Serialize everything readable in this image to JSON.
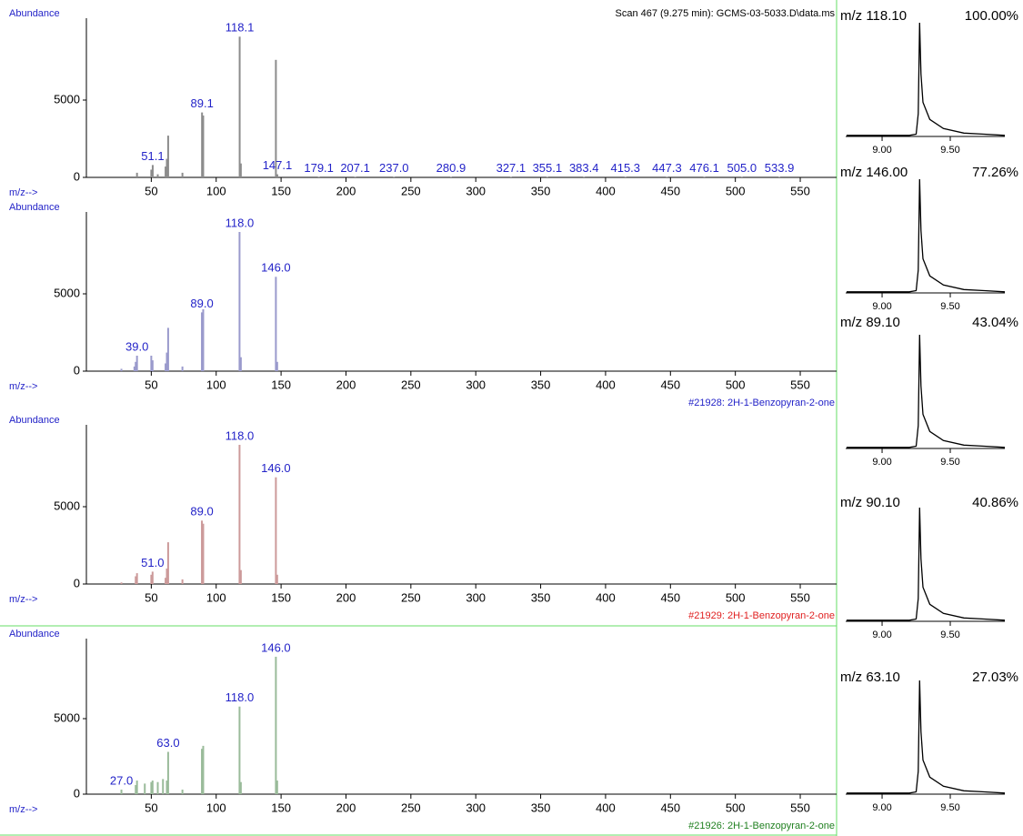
{
  "chart_data": [
    {
      "type": "spectrum",
      "title": "Scan 467 (9.275 min): GCMS-03-5033.D\\data.ms",
      "ylabel": "Abundance",
      "xlabel": "m/z-->",
      "x": [
        39,
        50,
        51.1,
        55,
        61,
        62,
        63,
        74,
        89.1,
        90,
        118.1,
        119,
        146,
        147.1,
        179.1,
        207.1,
        237.0,
        280.9,
        327.1,
        355.1,
        383.4,
        415.3,
        447.3,
        476.1,
        505.0,
        533.9
      ],
      "values": [
        300,
        500,
        800,
        200,
        700,
        1200,
        2700,
        300,
        4200,
        4000,
        9100,
        900,
        7600,
        200,
        40,
        40,
        40,
        40,
        40,
        40,
        40,
        40,
        40,
        40,
        40,
        40
      ],
      "x_labels": [
        null,
        null,
        "51.1",
        null,
        null,
        null,
        null,
        null,
        "89.1",
        null,
        "118.1",
        null,
        null,
        "147.1",
        "179.1",
        "207.1",
        "237.0",
        "280.9",
        "327.1",
        "355.1",
        "383.4",
        "415.3",
        "447.3",
        "476.1",
        "505.0",
        "533.9"
      ],
      "color": "#8c8c8c",
      "label_color": "#2323c8",
      "xlim": [
        0,
        578
      ],
      "xticks": [
        50,
        100,
        150,
        200,
        250,
        300,
        350,
        400,
        450,
        500,
        550
      ],
      "ylim": [
        0,
        10000
      ],
      "yticks": [
        0,
        5000
      ]
    },
    {
      "type": "spectrum",
      "ylabel": "Abundance",
      "xlabel": "m/z-->",
      "x": [
        27,
        37,
        38,
        39.0,
        50,
        51,
        61,
        62,
        63,
        74,
        89.0,
        90,
        118.0,
        119,
        146.0,
        147
      ],
      "values": [
        150,
        300,
        600,
        1000,
        1000,
        700,
        500,
        1200,
        2800,
        300,
        3800,
        4000,
        9000,
        900,
        6100,
        600
      ],
      "x_labels": [
        null,
        null,
        null,
        "39.0",
        null,
        null,
        null,
        null,
        null,
        null,
        "89.0",
        null,
        "118.0",
        null,
        "146.0",
        null
      ],
      "color": "#9a9acc",
      "label_color": "#2323c8",
      "caption": "#21928: 2H-1-Benzopyran-2-one",
      "caption_color": "#2323c8",
      "xlim": [
        0,
        578
      ],
      "xticks": [
        50,
        100,
        150,
        200,
        250,
        300,
        350,
        400,
        450,
        500,
        550
      ],
      "ylim": [
        0,
        10000
      ],
      "yticks": [
        0,
        5000
      ]
    },
    {
      "type": "spectrum",
      "ylabel": "Abundance",
      "xlabel": "m/z-->",
      "x": [
        27,
        38,
        39,
        50,
        51.0,
        61,
        62,
        63,
        74,
        89.0,
        90,
        118.0,
        119,
        146.0,
        147
      ],
      "values": [
        100,
        500,
        700,
        600,
        800,
        400,
        1000,
        2700,
        300,
        4100,
        3900,
        9000,
        900,
        6900,
        600
      ],
      "x_labels": [
        null,
        null,
        null,
        null,
        "51.0",
        null,
        null,
        null,
        null,
        "89.0",
        null,
        "118.0",
        null,
        "146.0",
        null
      ],
      "color": "#cc9a9a",
      "label_color": "#2323c8",
      "caption": "#21929: 2H-1-Benzopyran-2-one",
      "caption_color": "#e02020",
      "xlim": [
        0,
        578
      ],
      "xticks": [
        50,
        100,
        150,
        200,
        250,
        300,
        350,
        400,
        450,
        500,
        550
      ],
      "ylim": [
        0,
        10000
      ],
      "yticks": [
        0,
        5000
      ]
    },
    {
      "type": "spectrum",
      "ylabel": "Abundance",
      "xlabel": "m/z-->",
      "x": [
        27.0,
        38,
        39,
        45,
        50,
        51,
        55,
        59,
        62,
        63.0,
        74,
        89,
        90,
        118.0,
        119,
        146.0,
        147
      ],
      "values": [
        300,
        600,
        900,
        700,
        800,
        900,
        800,
        1000,
        900,
        2800,
        300,
        3000,
        3200,
        5800,
        800,
        9100,
        900
      ],
      "x_labels": [
        "27.0",
        null,
        null,
        null,
        null,
        null,
        null,
        null,
        null,
        "63.0",
        null,
        null,
        null,
        "118.0",
        null,
        "146.0",
        null
      ],
      "color": "#9abb9a",
      "label_color": "#2323c8",
      "caption": "#21926: 2H-1-Benzopyran-2-one",
      "caption_color": "#208020",
      "xlim": [
        0,
        578
      ],
      "xticks": [
        50,
        100,
        150,
        200,
        250,
        300,
        350,
        400,
        450,
        500,
        550
      ],
      "ylim": [
        0,
        10000
      ],
      "yticks": [
        0,
        5000
      ]
    },
    {
      "type": "line",
      "title": "m/z 118.10",
      "subtitle": "100.00%",
      "x": [
        8.74,
        9.2,
        9.25,
        9.265,
        9.275,
        9.285,
        9.3,
        9.35,
        9.45,
        9.6,
        9.75,
        9.9
      ],
      "values": [
        1,
        1,
        2,
        20,
        100,
        55,
        30,
        15,
        7,
        3,
        2,
        1
      ],
      "color": "#000000",
      "xlim": [
        8.733,
        9.9
      ],
      "xticks": [
        {
          "value": 9,
          "label": "9.00"
        },
        {
          "value": 9.5,
          "label": "9.50"
        }
      ],
      "ylim": [
        0,
        100
      ]
    },
    {
      "type": "line",
      "title": "m/z 146.00",
      "subtitle": "77.26%",
      "x": [
        8.74,
        9.2,
        9.25,
        9.265,
        9.275,
        9.285,
        9.3,
        9.35,
        9.45,
        9.6,
        9.75,
        9.9
      ],
      "values": [
        1,
        1,
        2,
        20,
        100,
        55,
        30,
        15,
        7,
        3,
        2,
        1
      ],
      "color": "#000000",
      "xlim": [
        8.733,
        9.9
      ],
      "xticks": [
        {
          "value": 9,
          "label": "9.00"
        },
        {
          "value": 9.5,
          "label": "9.50"
        }
      ],
      "ylim": [
        0,
        100
      ]
    },
    {
      "type": "line",
      "title": "m/z 89.10",
      "subtitle": "43.04%",
      "x": [
        8.74,
        9.2,
        9.25,
        9.265,
        9.275,
        9.285,
        9.3,
        9.35,
        9.45,
        9.6,
        9.75,
        9.9
      ],
      "values": [
        1,
        1,
        2,
        20,
        100,
        55,
        30,
        15,
        7,
        3,
        2,
        1
      ],
      "color": "#000000",
      "xlim": [
        8.733,
        9.9
      ],
      "xticks": [
        {
          "value": 9,
          "label": "9.00"
        },
        {
          "value": 9.5,
          "label": "9.50"
        }
      ],
      "ylim": [
        0,
        100
      ]
    },
    {
      "type": "line",
      "title": "m/z 90.10",
      "subtitle": "40.86%",
      "x": [
        8.74,
        9.2,
        9.25,
        9.265,
        9.275,
        9.285,
        9.3,
        9.35,
        9.45,
        9.6,
        9.75,
        9.9
      ],
      "values": [
        1,
        1,
        2,
        20,
        100,
        55,
        30,
        15,
        7,
        3,
        2,
        1
      ],
      "color": "#000000",
      "xlim": [
        8.733,
        9.9
      ],
      "xticks": [
        {
          "value": 9,
          "label": "9.00"
        },
        {
          "value": 9.5,
          "label": "9.50"
        }
      ],
      "ylim": [
        0,
        100
      ]
    },
    {
      "type": "line",
      "title": "m/z 63.10",
      "subtitle": "27.03%",
      "x": [
        8.74,
        9.2,
        9.25,
        9.265,
        9.275,
        9.285,
        9.3,
        9.35,
        9.45,
        9.6,
        9.75,
        9.9
      ],
      "values": [
        1,
        1,
        2,
        20,
        100,
        55,
        30,
        15,
        7,
        3,
        2,
        1
      ],
      "color": "#000000",
      "xlim": [
        8.733,
        9.9
      ],
      "xticks": [
        {
          "value": 9,
          "label": "9.00"
        },
        {
          "value": 9.5,
          "label": "9.50"
        }
      ],
      "ylim": [
        0,
        100
      ]
    }
  ]
}
